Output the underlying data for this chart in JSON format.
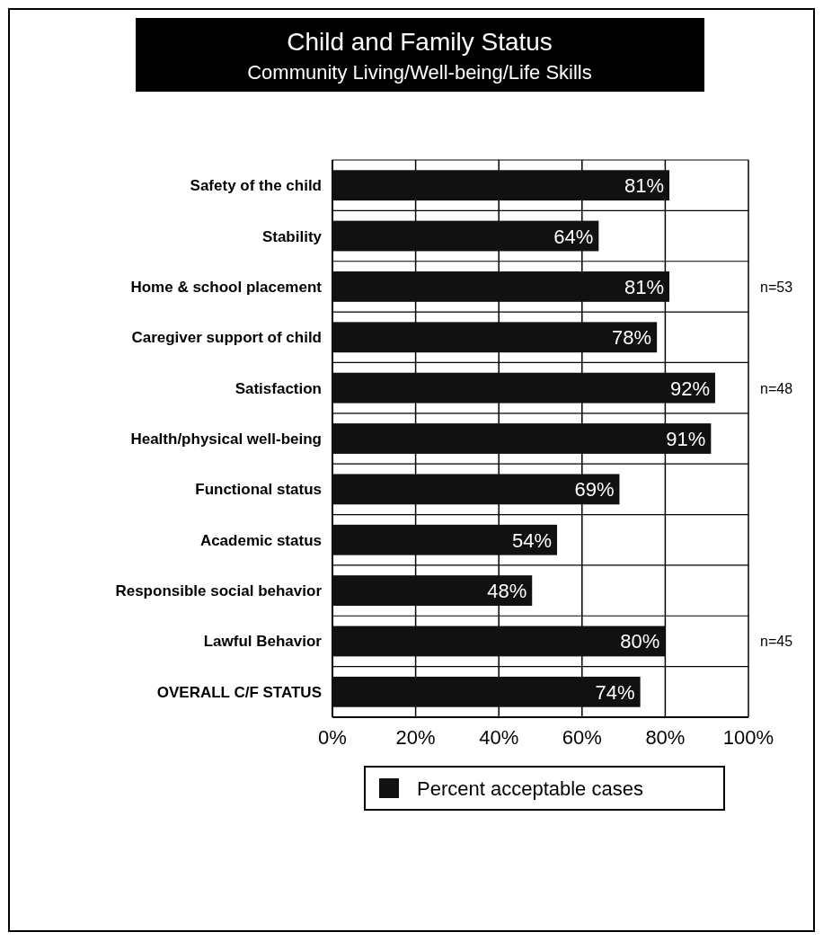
{
  "chart_data": {
    "type": "bar",
    "orientation": "horizontal",
    "title": "Child and Family Status",
    "subtitle": "Community Living/Well-being/Life Skills",
    "categories": [
      "Safety of the child",
      "Stability",
      "Home & school placement",
      "Caregiver support of child",
      "Satisfaction",
      "Health/physical well-being",
      "Functional status",
      "Academic status",
      "Responsible social behavior",
      "Lawful Behavior",
      "OVERALL C/F STATUS"
    ],
    "series": [
      {
        "name": "Percent acceptable cases",
        "color": "#111111",
        "values": [
          81,
          64,
          81,
          78,
          92,
          91,
          69,
          54,
          48,
          80,
          74
        ],
        "value_labels": [
          "81%",
          "64%",
          "81%",
          "78%",
          "92%",
          "91%",
          "69%",
          "54%",
          "48%",
          "80%",
          "74%"
        ]
      }
    ],
    "xlim": [
      0,
      100
    ],
    "xticks": [
      {
        "value": 0,
        "label": "0%"
      },
      {
        "value": 20,
        "label": "20%"
      },
      {
        "value": 40,
        "label": "40%"
      },
      {
        "value": 60,
        "label": "60%"
      },
      {
        "value": 80,
        "label": "80%"
      },
      {
        "value": 100,
        "label": "100%"
      }
    ],
    "grid": true,
    "legend": "bottom",
    "annotations": [
      "n=53",
      "n=48",
      "n=45"
    ]
  }
}
